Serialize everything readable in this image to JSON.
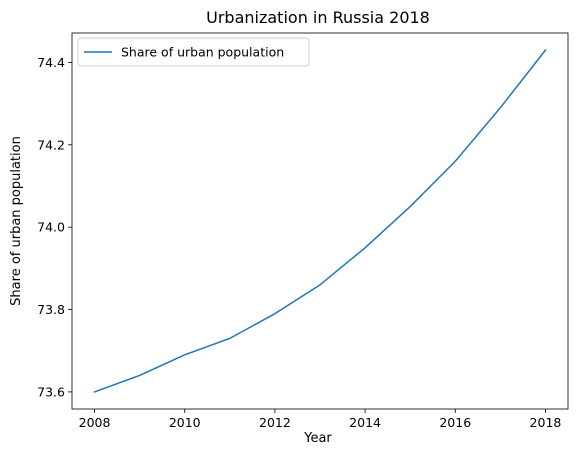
{
  "chart_data": {
    "type": "line",
    "title": "Urbanization in Russia 2018",
    "xlabel": "Year",
    "ylabel": "Share of urban population",
    "x": [
      2008,
      2009,
      2010,
      2011,
      2012,
      2013,
      2014,
      2015,
      2016,
      2017,
      2018
    ],
    "series": [
      {
        "name": "Share of urban population",
        "color": "#1f77b4",
        "values": [
          73.6,
          73.64,
          73.69,
          73.73,
          73.79,
          73.86,
          73.95,
          74.05,
          74.16,
          74.29,
          74.43
        ]
      }
    ],
    "xticks": [
      "2008",
      "2010",
      "2012",
      "2014",
      "2016",
      "2018"
    ],
    "yticks": [
      "73.6",
      "73.8",
      "74.0",
      "74.2",
      "74.4"
    ],
    "xlim": [
      2007.5,
      2018.5
    ],
    "ylim": [
      73.5585,
      74.4715
    ],
    "grid": false,
    "legend": "upper-left"
  }
}
